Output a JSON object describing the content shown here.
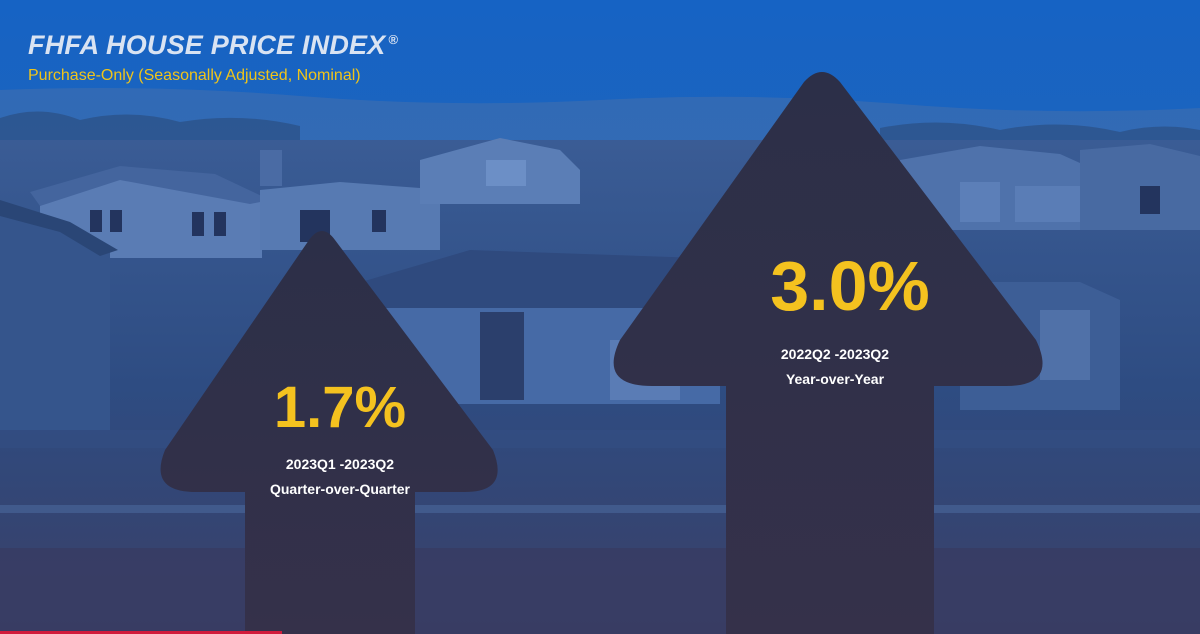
{
  "header": {
    "title": "FHFA HOUSE PRICE INDEX",
    "registered_mark": "®",
    "subtitle": "Purchase-Only (Seasonally Adjusted, Nominal)"
  },
  "quarterly": {
    "value": "1.7%",
    "period": "2023Q1 -2023Q2",
    "label": "Quarter-over-Quarter"
  },
  "annual": {
    "value": "3.0%",
    "period": "2022Q2 -2023Q2",
    "label": "Year-over-Year"
  },
  "colors": {
    "sky": "#1c5fb8",
    "scene": "#2a4f8e",
    "arrow": "#2b2e47",
    "accent": "#f4c21f",
    "subtitle": "#f0c419",
    "progress": "#d21b3c"
  },
  "video_progress": 0.235
}
